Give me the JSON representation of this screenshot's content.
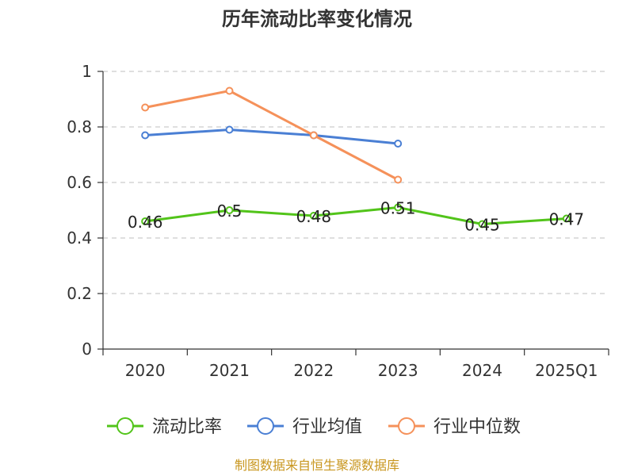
{
  "chart_data": {
    "type": "line",
    "title": "历年流动比率变化情况",
    "categories": [
      "2020",
      "2021",
      "2022",
      "2023",
      "2024",
      "2025Q1"
    ],
    "ylim": [
      0,
      1
    ],
    "yticks": [
      0,
      0.2,
      0.4,
      0.6,
      0.8,
      1
    ],
    "ytick_labels": [
      "0",
      "0.2",
      "0.4",
      "0.6",
      "0.8",
      "1"
    ],
    "grid": true,
    "legend_position": "bottom",
    "series": [
      {
        "name": "流动比率",
        "color": "#52c41a",
        "values": [
          0.46,
          0.5,
          0.48,
          0.51,
          0.45,
          0.47
        ],
        "labels": [
          "0.46",
          "0.5",
          "0.48",
          "0.51",
          "0.45",
          "0.47"
        ],
        "show_labels": true
      },
      {
        "name": "行业均值",
        "color": "#4a7fd4",
        "values": [
          0.77,
          0.79,
          0.77,
          0.74,
          null,
          null
        ],
        "show_labels": false
      },
      {
        "name": "行业中位数",
        "color": "#f5915a",
        "values": [
          0.87,
          0.93,
          0.77,
          0.61,
          null,
          null
        ],
        "show_labels": false
      }
    ]
  },
  "footer": {
    "source": "制图数据来自恒生聚源数据库"
  }
}
